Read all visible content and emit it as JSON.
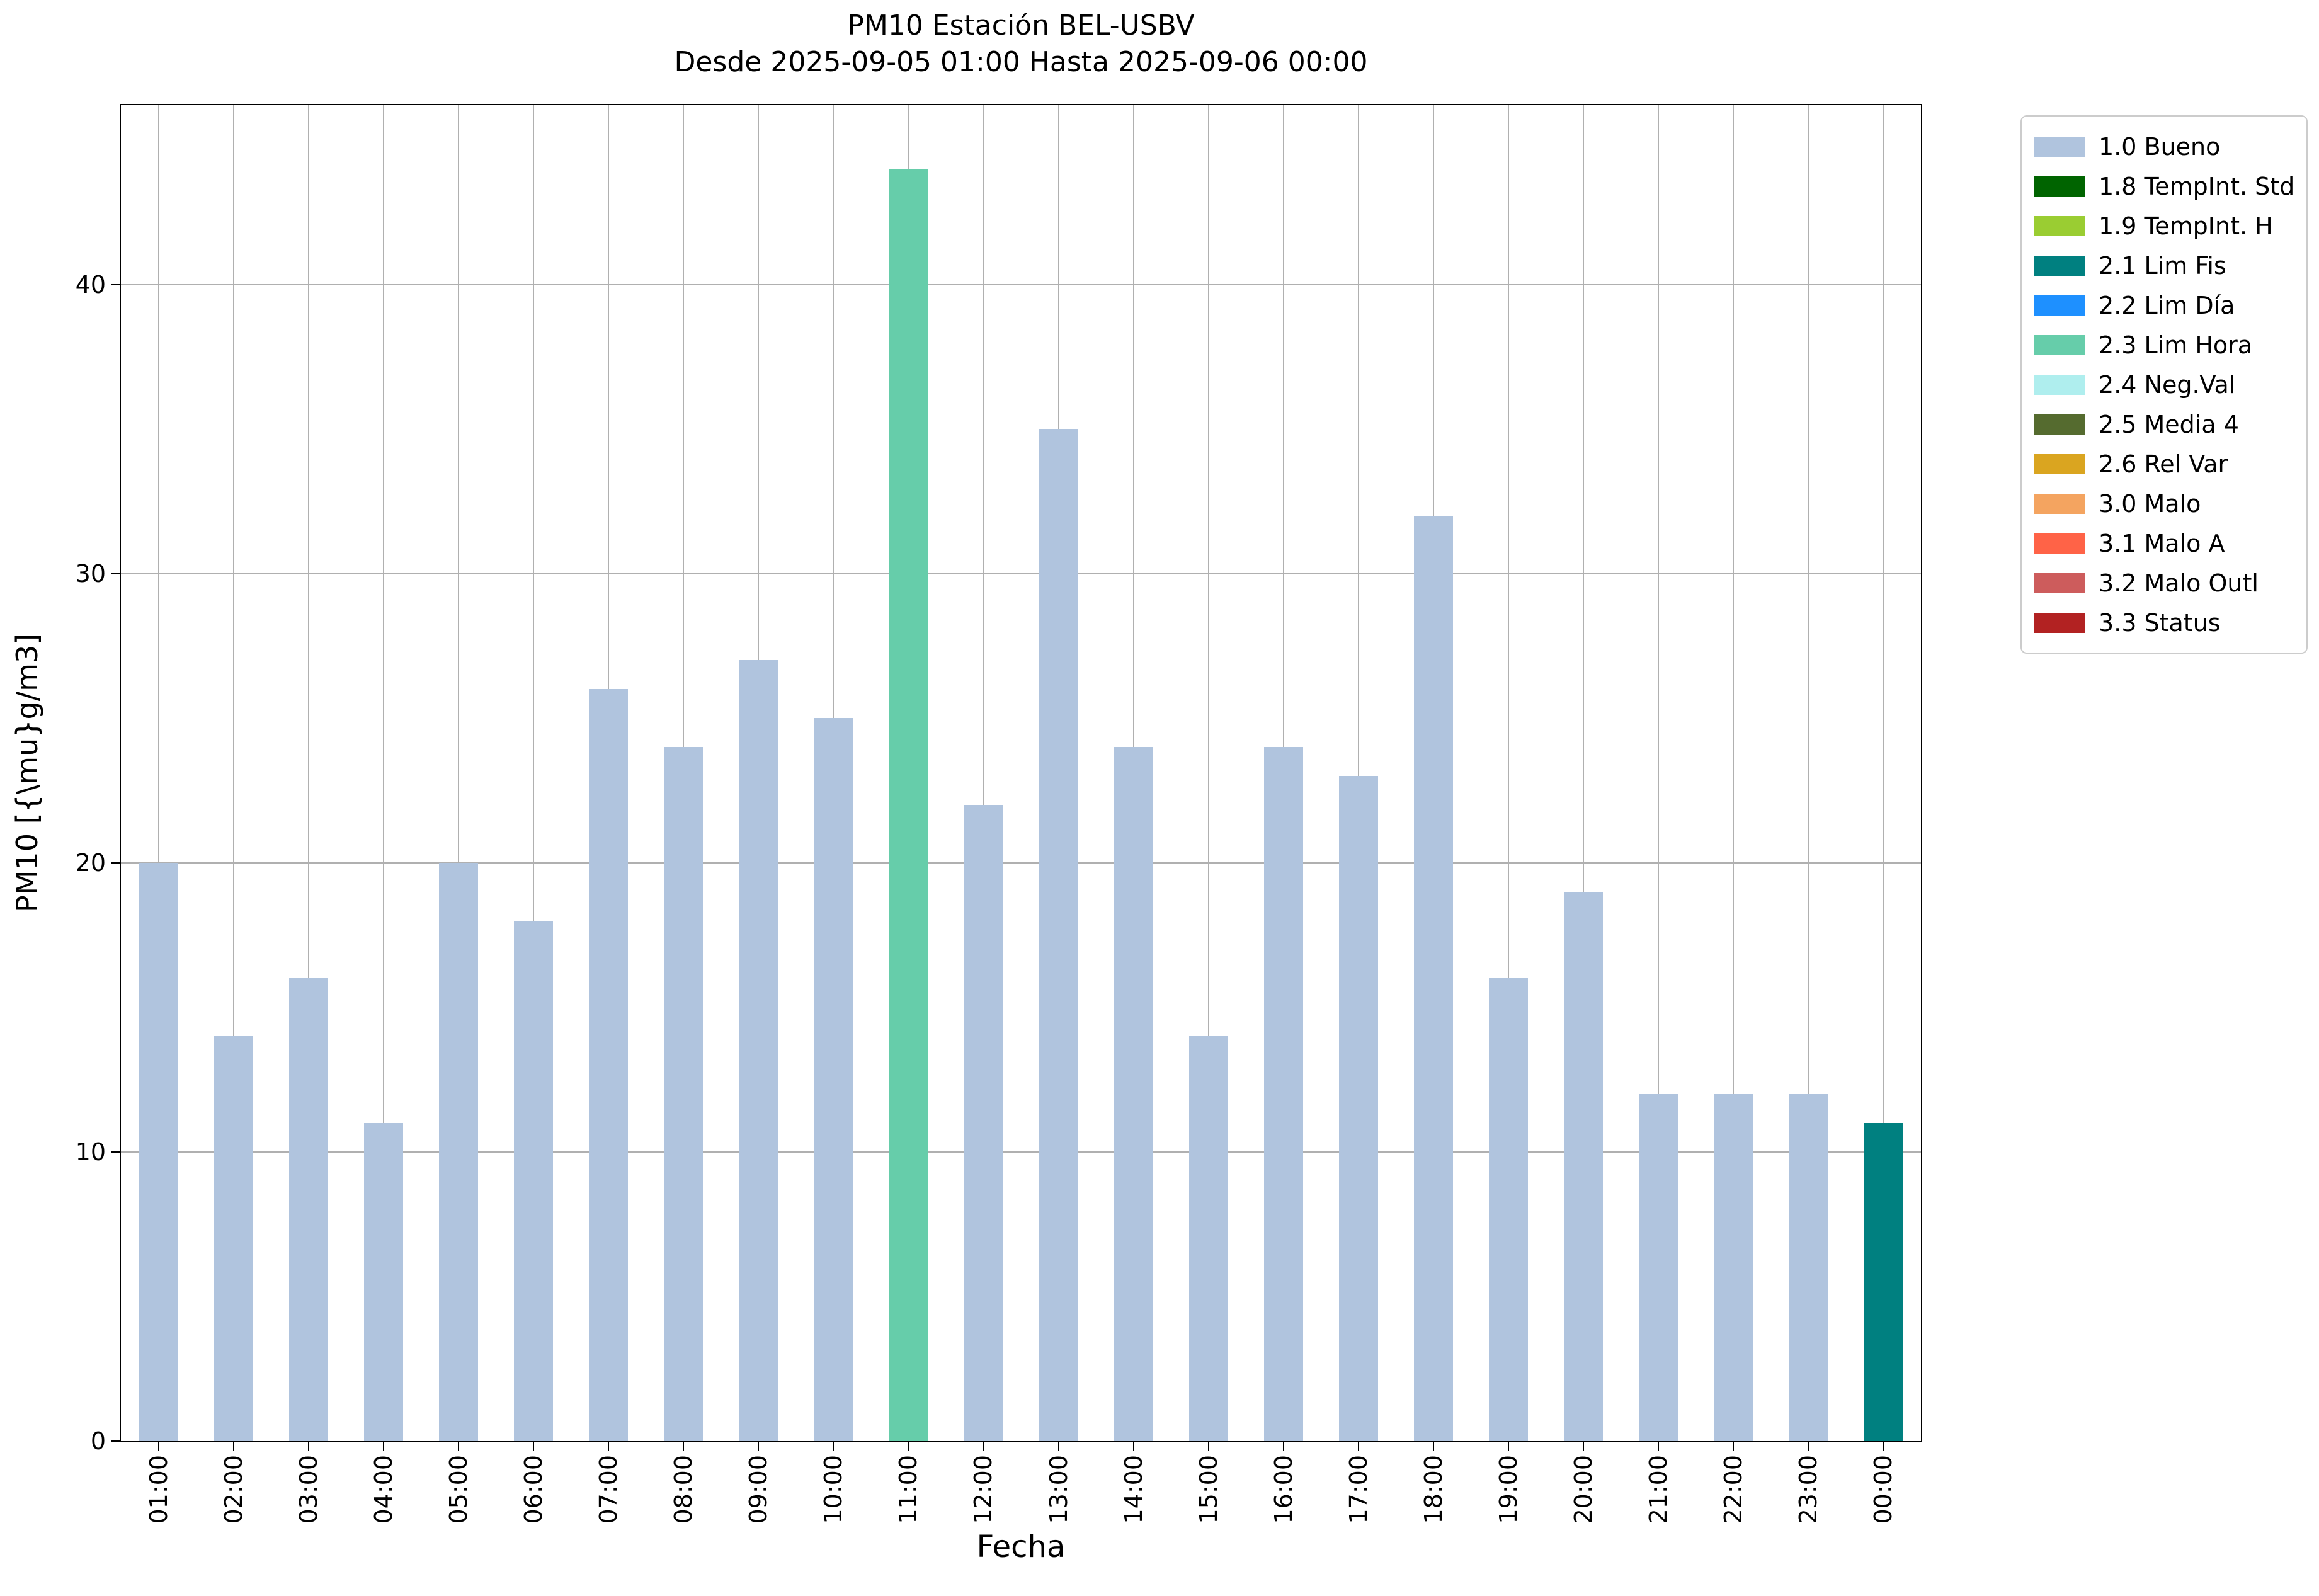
{
  "chart_data": {
    "type": "bar",
    "title": "PM10 Estación BEL-USBV",
    "subtitle": "Desde 2025-09-05 01:00 Hasta 2025-09-06 00:00",
    "xlabel": "Fecha",
    "ylabel": "PM10 [{\\mu}g/m3]",
    "categories": [
      "01:00",
      "02:00",
      "03:00",
      "04:00",
      "05:00",
      "06:00",
      "07:00",
      "08:00",
      "09:00",
      "10:00",
      "11:00",
      "12:00",
      "13:00",
      "14:00",
      "15:00",
      "16:00",
      "17:00",
      "18:00",
      "19:00",
      "20:00",
      "21:00",
      "22:00",
      "23:00",
      "00:00"
    ],
    "values": [
      20,
      14,
      16,
      11,
      20,
      18,
      26,
      24,
      27,
      25,
      44,
      22,
      35,
      24,
      14,
      24,
      23,
      32,
      16,
      19,
      12,
      12,
      12,
      11
    ],
    "bar_colors": [
      "#b0c4de",
      "#b0c4de",
      "#b0c4de",
      "#b0c4de",
      "#b0c4de",
      "#b0c4de",
      "#b0c4de",
      "#b0c4de",
      "#b0c4de",
      "#b0c4de",
      "#66cdaa",
      "#b0c4de",
      "#b0c4de",
      "#b0c4de",
      "#b0c4de",
      "#b0c4de",
      "#b0c4de",
      "#b0c4de",
      "#b0c4de",
      "#b0c4de",
      "#b0c4de",
      "#b0c4de",
      "#b0c4de",
      "#008080"
    ],
    "yticks": [
      0,
      10,
      20,
      30,
      40
    ],
    "ylim": [
      0,
      46.2
    ],
    "grid": true,
    "grid_color": "#b0b0b0",
    "legend_position": "outside-top-right",
    "legend": [
      {
        "label": "1.0 Bueno",
        "color": "#b0c4de"
      },
      {
        "label": "1.8 TempInt. Std",
        "color": "#006400"
      },
      {
        "label": "1.9 TempInt. H",
        "color": "#9acd32"
      },
      {
        "label": "2.1 Lim Fis",
        "color": "#008080"
      },
      {
        "label": "2.2 Lim Día",
        "color": "#1e90ff"
      },
      {
        "label": "2.3 Lim Hora",
        "color": "#66cdaa"
      },
      {
        "label": "2.4 Neg.Val",
        "color": "#afeeee"
      },
      {
        "label": "2.5 Media 4",
        "color": "#556b2f"
      },
      {
        "label": "2.6 Rel Var",
        "color": "#daa520"
      },
      {
        "label": "3.0 Malo",
        "color": "#f4a460"
      },
      {
        "label": "3.1 Malo A",
        "color": "#ff6347"
      },
      {
        "label": "3.2 Malo Outl",
        "color": "#cd5c5c"
      },
      {
        "label": "3.3 Status",
        "color": "#b22222"
      }
    ]
  }
}
